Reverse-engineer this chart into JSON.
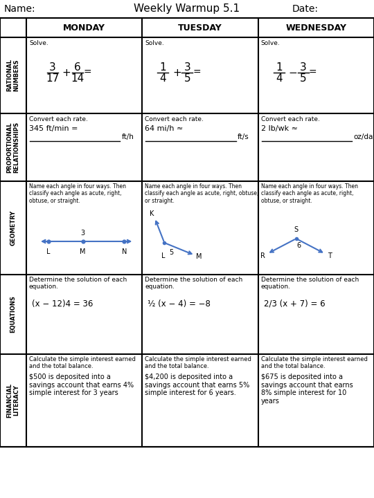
{
  "title": "Weekly Warmup 5.1",
  "name_label": "Name:",
  "date_label": "Date:",
  "col_headers": [
    "MONDAY",
    "TUESDAY",
    "WEDNESDAY"
  ],
  "row_headers": [
    "RATIONAL\nNUMBERS",
    "PROPORTIONAL\nRELATIONSHIPS",
    "GEOMETRY",
    "EQUATIONS",
    "FINANCIAL\nLITERACY"
  ],
  "bg_color": "#ffffff",
  "text_color": "#000000",
  "arrow_color": "#4472c4",
  "rational": {
    "monday": {
      "instr": "Solve.",
      "num1": "3",
      "den1": "17",
      "op": "+",
      "num2": "6",
      "den2": "14"
    },
    "tuesday": {
      "instr": "Solve.",
      "num1": "1",
      "den1": "4",
      "op": "+",
      "num2": "3",
      "den2": "5"
    },
    "wednesday": {
      "instr": "Solve.",
      "num1": "1",
      "den1": "4",
      "op": "−",
      "num2": "3",
      "den2": "5"
    }
  },
  "proportional": {
    "monday": {
      "instr": "Convert each rate.",
      "prob": "345 ft/min =",
      "unit": "ft/h"
    },
    "tuesday": {
      "instr": "Convert each rate.",
      "prob": "64 mi/h ≈",
      "unit": "ft/s"
    },
    "wednesday": {
      "instr": "Convert each rate.",
      "prob": "2 lb/wk ≈",
      "unit": "oz/day"
    }
  },
  "geometry": {
    "monday": {
      "instr": "Name each angle in four ways. Then\nclassify each angle as acute, right,\nobtuse, or straight."
    },
    "tuesday": {
      "instr": "Name each angle in four ways. Then\nclassify each angle as acute, right, obtuse,\nor straight."
    },
    "wednesday": {
      "instr": "Name each angle in four ways. Then\nclassify each angle as acute, right,\nobtuse, or straight."
    }
  },
  "equations": {
    "monday": {
      "instr": "Determine the solution of each\nequation.",
      "eq": "(x − 12)4 = 36"
    },
    "tuesday": {
      "instr": "Determine the solution of each\nequation.",
      "eq": "½ (x − 4) = −8"
    },
    "wednesday": {
      "instr": "Determine the solution of each\nequation.",
      "eq": "2/3 (x + 7) = 6"
    }
  },
  "financial": {
    "monday": {
      "instr": "Calculate the simple interest earned\nand the total balance.",
      "prob": "$500 is deposited into a\nsavings account that earns 4%\nsimple interest for 3 years"
    },
    "tuesday": {
      "instr": "Calculate the simple interest earned\nand the total balance.",
      "prob": "$4,200 is deposited into a\nsavings account that earns 5%\nsimple interest for 6 years."
    },
    "wednesday": {
      "instr": "Calculate the simple interest earned\nand the total balance.",
      "prob": "$675 is deposited into a\nsavings account that earns\n8% simple interest for 10\nyears"
    }
  }
}
